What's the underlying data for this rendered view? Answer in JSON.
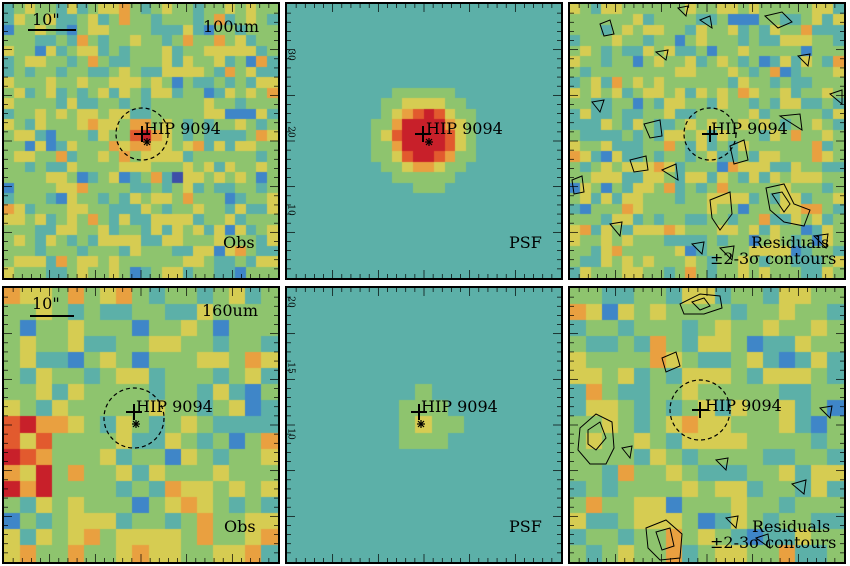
{
  "rows": [
    {
      "band": "100um",
      "scale_bar": "10\"",
      "target": "HIP 9094",
      "panels": {
        "obs": {
          "label": "Obs"
        },
        "psf": {
          "label": "PSF",
          "axis_ticks": [
            "10",
            "20",
            "30"
          ]
        },
        "residuals": {
          "label": "Residuals",
          "sublabel": "±2-3σ contours"
        }
      }
    },
    {
      "band": "160um",
      "scale_bar": "10\"",
      "target": "HIP 9094",
      "panels": {
        "obs": {
          "label": "Obs"
        },
        "psf": {
          "label": "PSF",
          "axis_ticks": [
            "10",
            "15",
            "20"
          ]
        },
        "residuals": {
          "label": "Residuals",
          "sublabel": "±2-3σ contours"
        }
      }
    }
  ],
  "colormap": [
    "#5a1f82",
    "#3d4fa8",
    "#3f86c8",
    "#5cb0a8",
    "#8ec46e",
    "#d6cc52",
    "#e9a040",
    "#e25a2e",
    "#c8202a"
  ]
}
